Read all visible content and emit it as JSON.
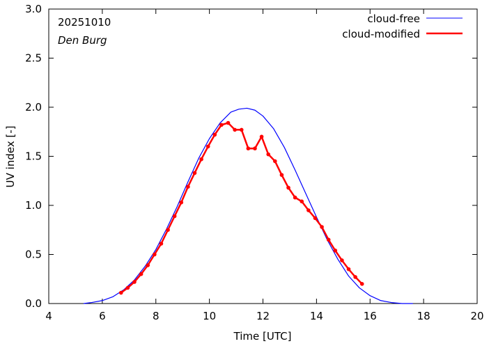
{
  "chart_data": {
    "type": "line",
    "title": "",
    "xlabel": "Time  [UTC]",
    "ylabel": "UV index  [-]",
    "xlim": [
      4,
      20
    ],
    "ylim": [
      0.0,
      3.0
    ],
    "xticks": [
      4,
      6,
      8,
      10,
      12,
      14,
      16,
      18,
      20
    ],
    "yticks": [
      0.0,
      0.5,
      1.0,
      1.5,
      2.0,
      2.5,
      3.0
    ],
    "ytick_labels": [
      "0.0",
      "0.5",
      "1.0",
      "1.5",
      "2.0",
      "2.5",
      "3.0"
    ],
    "xtick_labels": [
      "4",
      "6",
      "8",
      "10",
      "12",
      "14",
      "16",
      "18",
      "20"
    ],
    "grid": false,
    "legend_position": "top-right",
    "annotations": {
      "date": "20251010",
      "location": "Den Burg"
    },
    "series": [
      {
        "name": "cloud-free",
        "color": "#0000ff",
        "style": "line",
        "x": [
          5.3,
          5.6,
          6.0,
          6.4,
          6.8,
          7.2,
          7.6,
          8.0,
          8.4,
          8.8,
          9.2,
          9.6,
          10.0,
          10.4,
          10.8,
          11.1,
          11.4,
          11.7,
          12.0,
          12.4,
          12.8,
          13.2,
          13.6,
          14.0,
          14.4,
          14.8,
          15.2,
          15.6,
          16.0,
          16.4,
          16.8,
          17.2,
          17.6
        ],
        "y": [
          0.0,
          0.01,
          0.03,
          0.07,
          0.14,
          0.24,
          0.38,
          0.55,
          0.76,
          0.99,
          1.24,
          1.48,
          1.68,
          1.84,
          1.95,
          1.98,
          1.99,
          1.97,
          1.91,
          1.78,
          1.59,
          1.36,
          1.12,
          0.88,
          0.65,
          0.45,
          0.28,
          0.16,
          0.08,
          0.03,
          0.01,
          0.0,
          0.0
        ]
      },
      {
        "name": "cloud-modified",
        "color": "#ff0000",
        "style": "line-markers",
        "x": [
          6.7,
          6.95,
          7.2,
          7.45,
          7.7,
          7.95,
          8.2,
          8.45,
          8.7,
          8.95,
          9.2,
          9.45,
          9.7,
          9.95,
          10.2,
          10.45,
          10.7,
          10.95,
          11.2,
          11.45,
          11.7,
          11.95,
          12.2,
          12.45,
          12.7,
          12.95,
          13.2,
          13.45,
          13.7,
          13.95,
          14.2,
          14.45,
          14.7,
          14.95,
          15.2,
          15.45,
          15.7
        ],
        "y": [
          0.11,
          0.16,
          0.22,
          0.3,
          0.39,
          0.5,
          0.61,
          0.75,
          0.89,
          1.03,
          1.19,
          1.33,
          1.47,
          1.6,
          1.72,
          1.82,
          1.84,
          1.77,
          1.77,
          1.58,
          1.58,
          1.7,
          1.52,
          1.45,
          1.31,
          1.18,
          1.08,
          1.04,
          0.95,
          0.87,
          0.78,
          0.65,
          0.54,
          0.44,
          0.35,
          0.27,
          0.2
        ]
      }
    ]
  }
}
